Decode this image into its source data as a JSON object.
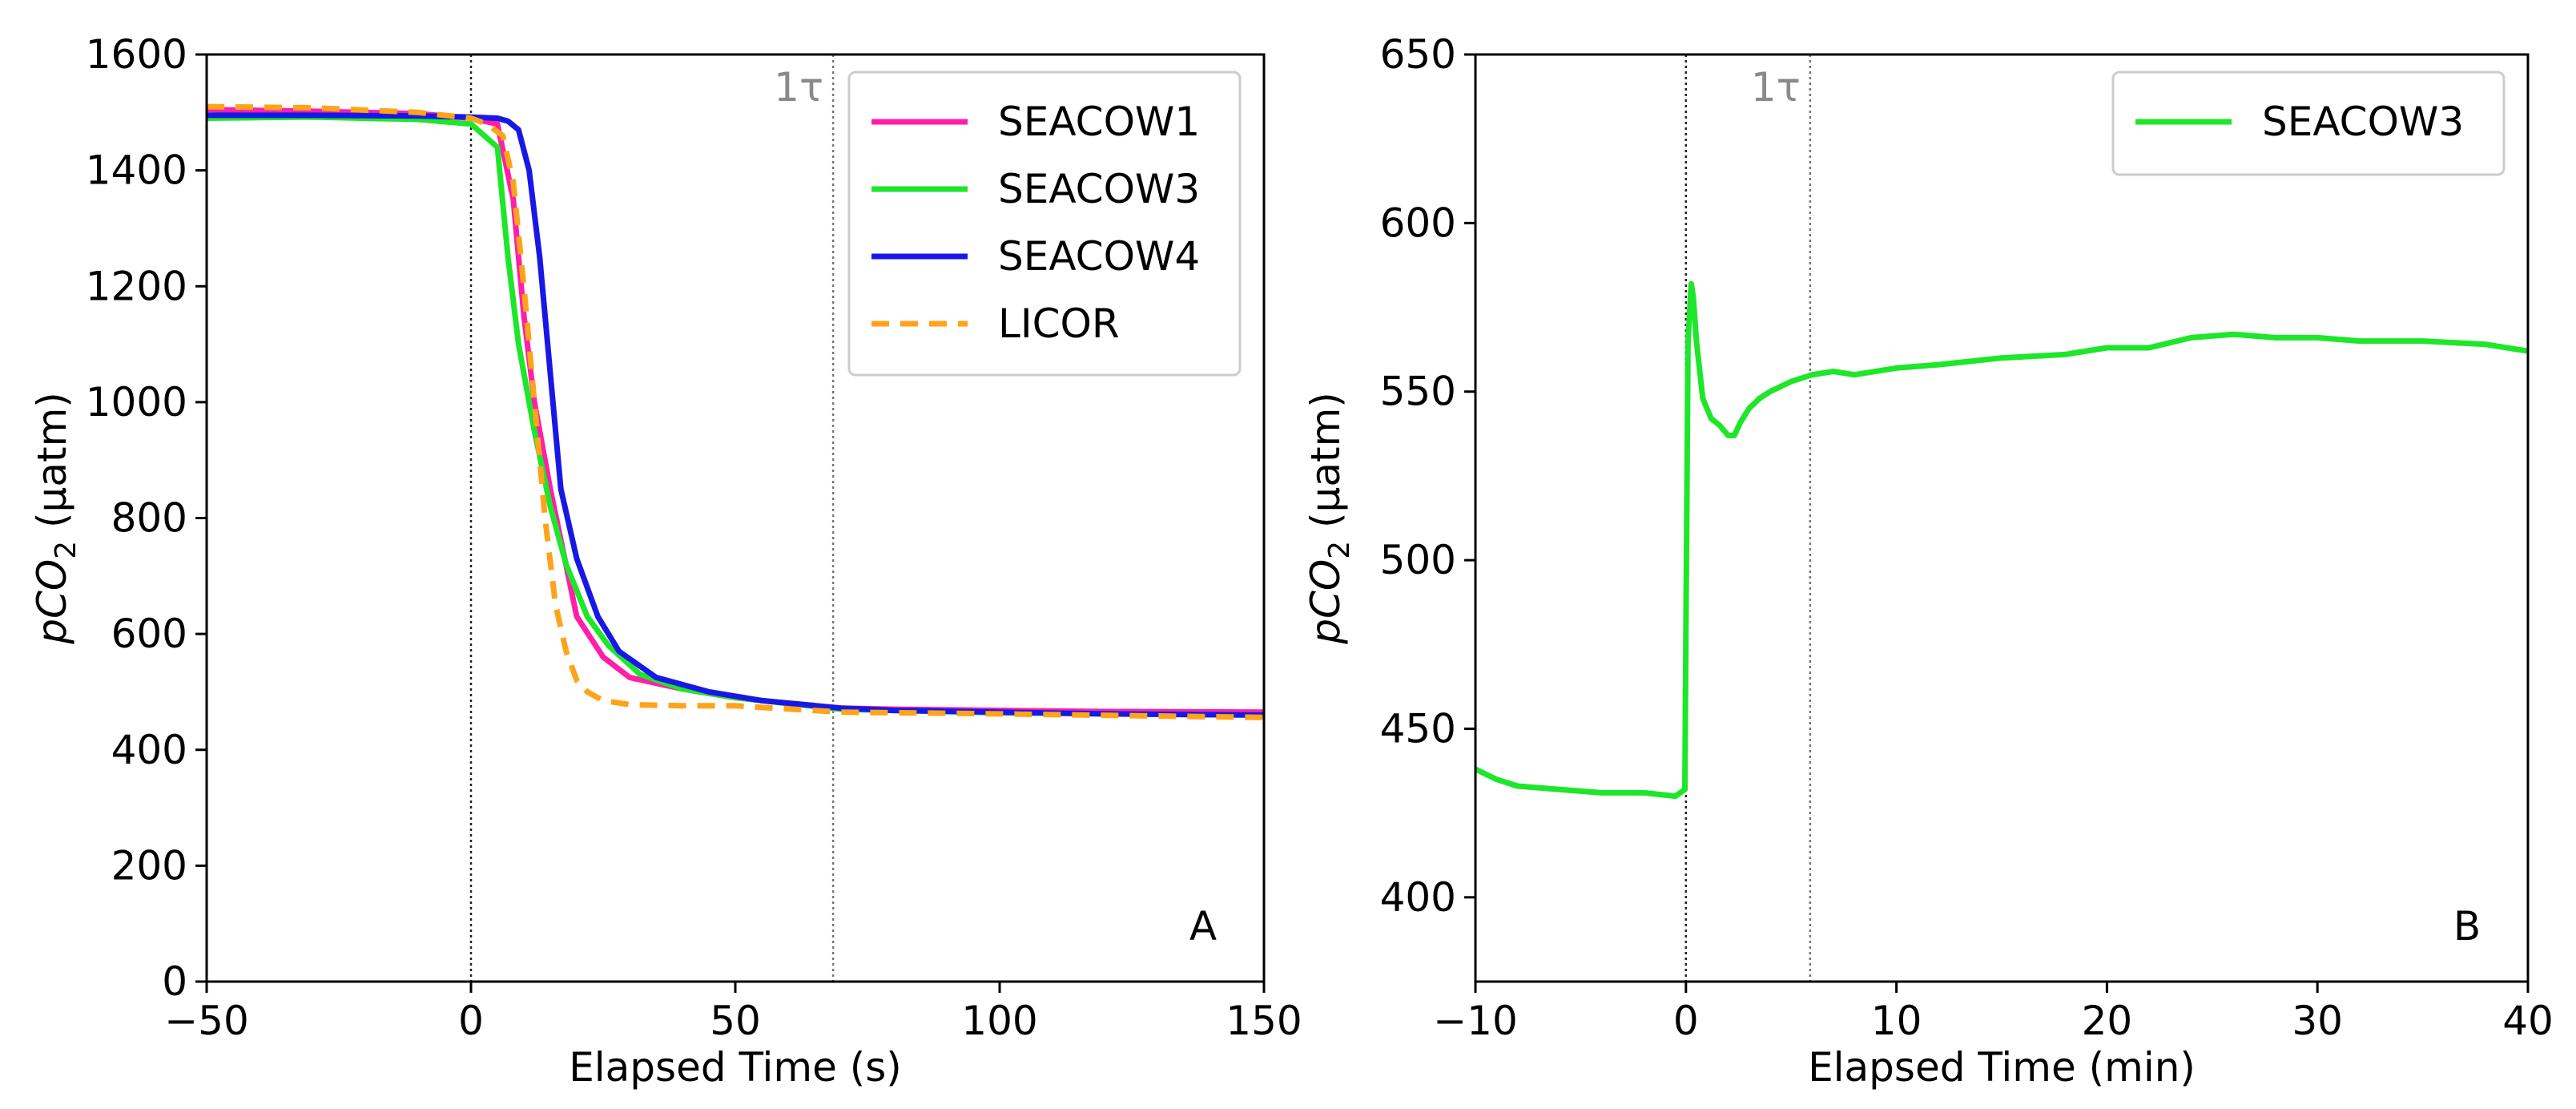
{
  "chart_data": [
    {
      "panel": "A",
      "type": "line",
      "xlabel": "Elapsed Time (s)",
      "ylabel_main": "pCO",
      "ylabel_sub": "2",
      "ylabel_unit": " (μatm)",
      "xlim": [
        -50,
        150
      ],
      "ylim": [
        0,
        1600
      ],
      "xticks": [
        -50,
        0,
        50,
        100,
        150
      ],
      "xtick_labels": [
        "−50",
        "0",
        "50",
        "100",
        "150"
      ],
      "yticks": [
        0,
        200,
        400,
        600,
        800,
        1000,
        1200,
        1400,
        1600
      ],
      "ytick_labels": [
        "0",
        "200",
        "400",
        "600",
        "800",
        "1000",
        "1200",
        "1400",
        "1600"
      ],
      "vlines": [
        {
          "x": 0,
          "label": ""
        },
        {
          "x": 68.5,
          "label": "1τ"
        }
      ],
      "legend_position": "top-right",
      "series": [
        {
          "name": "SEACOW1",
          "color": "#ff1fa8",
          "style": "solid",
          "x": [
            -50,
            -30,
            -10,
            0,
            5,
            8,
            10,
            12,
            15,
            20,
            25,
            30,
            40,
            50,
            60,
            70,
            80,
            100,
            120,
            150
          ],
          "y": [
            1505,
            1502,
            1498,
            1490,
            1480,
            1350,
            1150,
            1000,
            850,
            630,
            560,
            525,
            505,
            490,
            480,
            472,
            470,
            468,
            466,
            465
          ]
        },
        {
          "name": "SEACOW3",
          "color": "#1ee62a",
          "style": "solid",
          "x": [
            -50,
            -30,
            -10,
            0,
            5,
            7,
            9,
            12,
            15,
            18,
            22,
            26,
            32,
            40,
            50,
            60,
            70,
            80,
            100,
            120,
            150
          ],
          "y": [
            1490,
            1492,
            1488,
            1480,
            1440,
            1250,
            1100,
            950,
            820,
            720,
            630,
            580,
            530,
            505,
            490,
            480,
            470,
            468,
            464,
            462,
            460
          ]
        },
        {
          "name": "SEACOW4",
          "color": "#1818e6",
          "style": "solid",
          "x": [
            -50,
            -30,
            -10,
            0,
            5,
            7,
            9,
            11,
            13,
            15,
            17,
            20,
            24,
            28,
            35,
            45,
            55,
            70,
            80,
            100,
            120,
            150
          ],
          "y": [
            1495,
            1495,
            1494,
            1492,
            1490,
            1485,
            1470,
            1400,
            1250,
            1050,
            850,
            730,
            630,
            570,
            525,
            500,
            485,
            472,
            468,
            465,
            462,
            460
          ]
        },
        {
          "name": "LICOR",
          "color": "#ffa31a",
          "style": "dashed",
          "x": [
            -50,
            -30,
            -10,
            0,
            3,
            6,
            8,
            10,
            12,
            14,
            16,
            18,
            20,
            22,
            25,
            30,
            40,
            50,
            70,
            100,
            150
          ],
          "y": [
            1510,
            1508,
            1500,
            1490,
            1480,
            1460,
            1380,
            1200,
            1000,
            800,
            650,
            570,
            520,
            500,
            485,
            478,
            476,
            476,
            465,
            462,
            456
          ]
        }
      ],
      "panel_label": "A"
    },
    {
      "panel": "B",
      "type": "line",
      "xlabel": "Elapsed Time (min)",
      "ylabel_main": "pCO",
      "ylabel_sub": "2",
      "ylabel_unit": " (μatm)",
      "xlim": [
        -10,
        40
      ],
      "ylim": [
        375,
        650
      ],
      "xticks": [
        -10,
        0,
        10,
        20,
        30,
        40
      ],
      "xtick_labels": [
        "−10",
        "0",
        "10",
        "20",
        "30",
        "40"
      ],
      "yticks": [
        400,
        450,
        500,
        550,
        600,
        650
      ],
      "ytick_labels": [
        "400",
        "450",
        "500",
        "550",
        "600",
        "650"
      ],
      "vlines": [
        {
          "x": 0,
          "label": ""
        },
        {
          "x": 5.9,
          "label": "1τ"
        }
      ],
      "legend_position": "top-right",
      "series": [
        {
          "name": "SEACOW3",
          "color": "#1ee62a",
          "style": "solid",
          "x": [
            -10,
            -9,
            -8,
            -6,
            -4,
            -2,
            -0.5,
            -0.05,
            0,
            0.1,
            0.25,
            0.35,
            0.5,
            0.8,
            1.2,
            1.6,
            2.0,
            2.3,
            2.6,
            3.0,
            3.5,
            4,
            5,
            6,
            7,
            8,
            10,
            12,
            15,
            18,
            20,
            22,
            24,
            26,
            28,
            30,
            32,
            35,
            38,
            40
          ],
          "y": [
            438,
            435,
            433,
            432,
            431,
            431,
            430,
            432,
            480,
            565,
            582,
            578,
            565,
            548,
            542,
            540,
            537,
            537,
            541,
            545,
            548,
            550,
            553,
            555,
            556,
            555,
            557,
            558,
            560,
            561,
            563,
            563,
            566,
            567,
            566,
            566,
            565,
            565,
            564,
            562
          ]
        }
      ],
      "panel_label": "B"
    }
  ]
}
